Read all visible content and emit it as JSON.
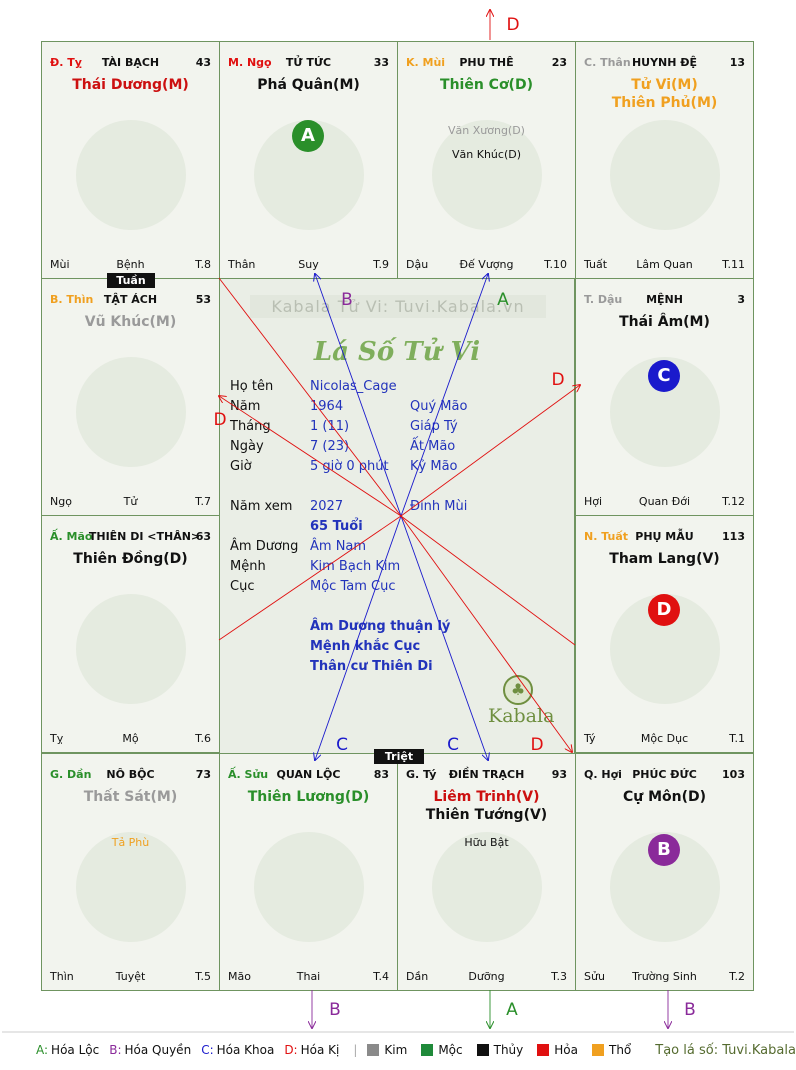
{
  "colors": {
    "green": "#2a8f2a",
    "purple": "#8a2a9a",
    "blue": "#1a1acc",
    "red": "#e01010",
    "orange": "#f0a020",
    "gray": "#9a9a9a",
    "darkred": "#cc1010"
  },
  "watermark": "Kabala Tử Vi: Tuvi.Kabala.vn",
  "title_art": "Lá Số Tử Vi",
  "logo_text": "Kabala",
  "tags": {
    "tuan": "Tuần",
    "triet": "Triệt"
  },
  "cells": [
    {
      "can": "Đ. Tỵ",
      "can_color": "red",
      "cung": "TÀI BẠCH",
      "num": "43",
      "stars": [
        {
          "t": "Thái Dương(M)",
          "c": "darkred"
        }
      ],
      "minor": [],
      "foot": [
        "Mùi",
        "Bệnh",
        "T.8"
      ]
    },
    {
      "can": "M. Ngọ",
      "can_color": "red",
      "cung": "TỬ TỨC",
      "num": "33",
      "stars": [
        {
          "t": "Phá Quân(M)",
          "c": "black"
        }
      ],
      "minor": [],
      "foot": [
        "Thân",
        "Suy",
        "T.9"
      ]
    },
    {
      "can": "K. Mùi",
      "can_color": "orange",
      "cung": "PHU THÊ",
      "num": "23",
      "stars": [
        {
          "t": "Thiên Cơ(D)",
          "c": "green"
        }
      ],
      "minor": [
        {
          "t": "Văn Xương(D)",
          "c": "gray"
        },
        {
          "t": "Văn Khúc(D)",
          "c": "black"
        }
      ],
      "foot": [
        "Dậu",
        "Đế Vượng",
        "T.10"
      ]
    },
    {
      "can": "C. Thân",
      "can_color": "gray",
      "cung": "HUYNH ĐỆ",
      "num": "13",
      "stars": [
        {
          "t": "Tử Vi(M)",
          "c": "orange"
        },
        {
          "t": "Thiên Phủ(M)",
          "c": "orange"
        }
      ],
      "minor": [],
      "foot": [
        "Tuất",
        "Lâm Quan",
        "T.11"
      ]
    },
    {
      "can": "B. Thìn",
      "can_color": "orange",
      "cung": "TẬT ÁCH",
      "num": "53",
      "stars": [
        {
          "t": "Vũ Khúc(M)",
          "c": "gray"
        }
      ],
      "minor": [],
      "foot": [
        "Ngọ",
        "Tử",
        "T.7"
      ]
    },
    {
      "can": "T. Dậu",
      "can_color": "gray",
      "cung": "MỆNH",
      "num": "3",
      "stars": [
        {
          "t": "Thái Âm(M)",
          "c": "black"
        }
      ],
      "minor": [],
      "foot": [
        "Hợi",
        "Quan Đới",
        "T.12"
      ]
    },
    {
      "can": "Ấ. Mão",
      "can_color": "green",
      "cung": "THIÊN DI <THÂN>",
      "num": "63",
      "stars": [
        {
          "t": "Thiên Đồng(D)",
          "c": "black"
        }
      ],
      "minor": [],
      "foot": [
        "Tỵ",
        "Mộ",
        "T.6"
      ]
    },
    {
      "can": "N. Tuất",
      "can_color": "orange",
      "cung": "PHỤ MẪU",
      "num": "113",
      "stars": [
        {
          "t": "Tham Lang(V)",
          "c": "black"
        }
      ],
      "minor": [],
      "foot": [
        "Tý",
        "Mộc Dục",
        "T.1"
      ]
    },
    {
      "can": "G. Dần",
      "can_color": "green",
      "cung": "NÔ BỘC",
      "num": "73",
      "stars": [
        {
          "t": "Thất Sát(M)",
          "c": "gray"
        }
      ],
      "minor": [
        {
          "t": "Tả Phù",
          "c": "orange"
        }
      ],
      "foot": [
        "Thìn",
        "Tuyệt",
        "T.5"
      ]
    },
    {
      "can": "Ấ. Sửu",
      "can_color": "green",
      "cung": "QUAN LỘC",
      "num": "83",
      "stars": [
        {
          "t": "Thiên Lương(D)",
          "c": "green"
        }
      ],
      "minor": [],
      "foot": [
        "Mão",
        "Thai",
        "T.4"
      ]
    },
    {
      "can": "G. Tý",
      "can_color": "black",
      "cung": "ĐIỀN TRẠCH",
      "num": "93",
      "stars": [
        {
          "t": "Liêm Trinh(V)",
          "c": "darkred"
        },
        {
          "t": "Thiên Tướng(V)",
          "c": "black"
        }
      ],
      "minor": [
        {
          "t": "Hữu Bật",
          "c": "black"
        }
      ],
      "foot": [
        "Dần",
        "Dưỡng",
        "T.3"
      ]
    },
    {
      "can": "Q. Hợi",
      "can_color": "black",
      "cung": "PHÚC ĐỨC",
      "num": "103",
      "stars": [
        {
          "t": "Cự Môn(D)",
          "c": "black"
        }
      ],
      "minor": [],
      "foot": [
        "Sửu",
        "Trường Sinh",
        "T.2"
      ]
    }
  ],
  "badges": [
    {
      "label": "A",
      "color": "green"
    },
    {
      "label": "C",
      "color": "blue"
    },
    {
      "label": "D",
      "color": "red"
    },
    {
      "label": "B",
      "color": "purple"
    }
  ],
  "info": [
    {
      "k": "Họ tên",
      "v1": "Nicolas_Cage",
      "v2": ""
    },
    {
      "k": "Năm",
      "v1": "1964",
      "v2": "Quý Mão"
    },
    {
      "k": "Tháng",
      "v1": "1  (11)",
      "v2": "Giáp Tý"
    },
    {
      "k": "Ngày",
      "v1": "7  (23)",
      "v2": "Ất Mão"
    },
    {
      "k": "Giờ",
      "v1": "5 giờ 0 phút",
      "v2": "Kỷ Mão"
    },
    {
      "k": "Năm xem",
      "v1": "2027",
      "v2": "Đinh Mùi"
    },
    {
      "k": "",
      "v1": "65 Tuổi",
      "v2": ""
    },
    {
      "k": "Âm Dương",
      "v1": "Âm Nam",
      "v2": ""
    },
    {
      "k": "Mệnh",
      "v1": "Kim Bạch Kim",
      "v2": ""
    },
    {
      "k": "Cục",
      "v1": "Mộc Tam Cục",
      "v2": ""
    }
  ],
  "notes": [
    "Âm Dương thuận lý",
    "Mệnh khắc Cục",
    "Thân cư Thiên Di"
  ],
  "arrow_labels": [
    {
      "t": "D",
      "c": "red"
    },
    {
      "t": "B",
      "c": "purple"
    },
    {
      "t": "A",
      "c": "green"
    },
    {
      "t": "D",
      "c": "red"
    },
    {
      "t": "D",
      "c": "red"
    },
    {
      "t": "C",
      "c": "blue"
    },
    {
      "t": "C",
      "c": "blue"
    },
    {
      "t": "D",
      "c": "red"
    },
    {
      "t": "B",
      "c": "purple"
    },
    {
      "t": "A",
      "c": "green"
    },
    {
      "t": "B",
      "c": "purple"
    }
  ],
  "legend": {
    "hoa": [
      {
        "k": "A",
        "t": "Hóa Lộc",
        "c": "green"
      },
      {
        "k": "B",
        "t": "Hóa Quyền",
        "c": "purple"
      },
      {
        "k": "C",
        "t": "Hóa Khoa",
        "c": "blue"
      },
      {
        "k": "D",
        "t": "Hóa Kị",
        "c": "red"
      }
    ],
    "hanh": [
      {
        "t": "Kim",
        "c": "#8a8a8a"
      },
      {
        "t": "Mộc",
        "c": "#1f8a3a"
      },
      {
        "t": "Thủy",
        "c": "#111111"
      },
      {
        "t": "Hỏa",
        "c": "#e01010"
      },
      {
        "t": "Thổ",
        "c": "#f0a020"
      }
    ],
    "credit": "Tạo lá số: Tuvi.Kabala.vn"
  }
}
